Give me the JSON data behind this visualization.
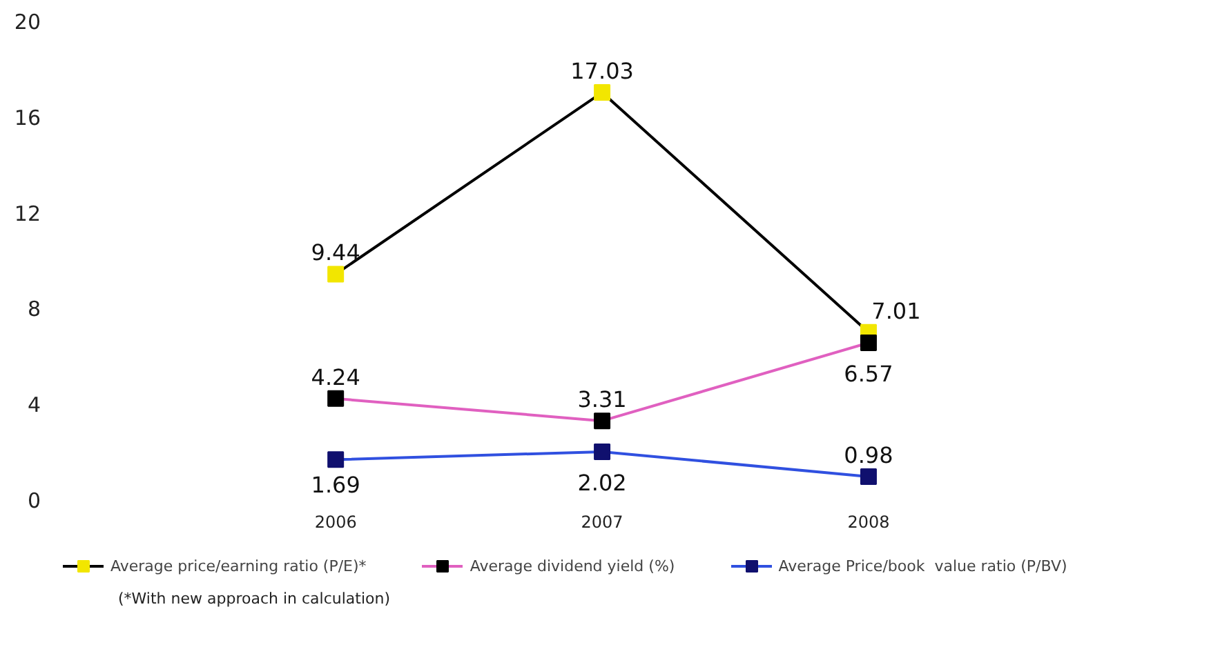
{
  "chart_data": {
    "type": "line",
    "categories": [
      "2006",
      "2007",
      "2008"
    ],
    "series": [
      {
        "name": "Average price/earning ratio (P/E)*",
        "color": "#000000",
        "colors": [
          "#f2e600",
          "#f2e600",
          "#f2e600"
        ],
        "values": [
          9.44,
          17.03,
          7.01
        ]
      },
      {
        "name": "Average dividend yield (%)",
        "color": "#e060c0",
        "colors": [
          "#000000",
          "#000000",
          "#000000"
        ],
        "values": [
          4.24,
          3.31,
          6.57
        ]
      },
      {
        "name": "Average Price/book  value ratio (P/BV)",
        "color": "#3050e0",
        "colors": [
          "#10106e",
          "#10106e",
          "#10106e"
        ],
        "values": [
          1.69,
          2.02,
          0.98
        ]
      }
    ],
    "ylim": [
      0,
      20
    ],
    "yticks": [
      0,
      4,
      8,
      12,
      16,
      20
    ],
    "data_labels": true,
    "grid": false,
    "legend": "bottom",
    "marker": "square",
    "line_style": "solid",
    "annotations": [
      "(*With new approach in calculation)"
    ]
  }
}
